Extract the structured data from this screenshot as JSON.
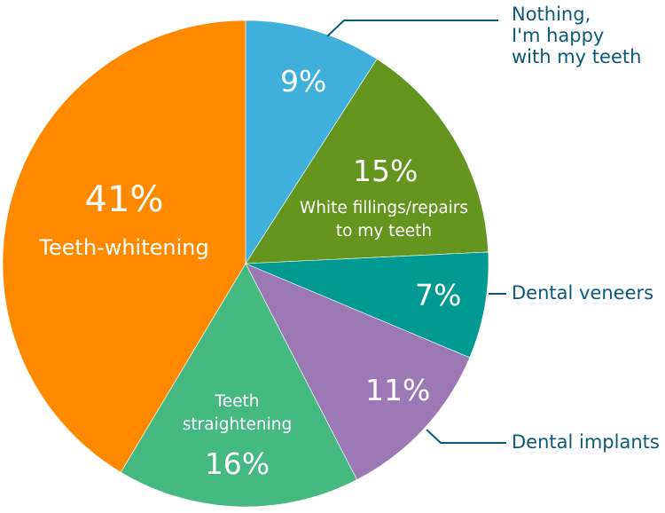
{
  "chart_data": {
    "type": "pie",
    "title": "",
    "start_angle": "12 o'clock",
    "direction": "clockwise",
    "slices": [
      {
        "label": "Nothing, I'm happy with my teeth",
        "value": 9,
        "display": "9%",
        "color": "#3fb0dc",
        "label_position": "outside"
      },
      {
        "label": "White fillings/repairs to my teeth",
        "value": 15,
        "display": "15%",
        "color": "#64951f",
        "label_position": "inside"
      },
      {
        "label": "Dental veneers",
        "value": 7,
        "display": "7%",
        "color": "#009a93",
        "label_position": "outside"
      },
      {
        "label": "Dental implants",
        "value": 11,
        "display": "11%",
        "color": "#9c79b5",
        "label_position": "outside"
      },
      {
        "label": "Teeth straightening",
        "value": 16,
        "display": "16%",
        "color": "#46b882",
        "label_position": "inside"
      },
      {
        "label": "Teeth-whitening",
        "value": 41,
        "display": "41%",
        "color": "#ff8a00",
        "label_position": "inside"
      }
    ],
    "label_color_outside": "#0b5a7a",
    "leader_line_color": "#0b5a7a"
  },
  "labels": {
    "nothing_pct": "9%",
    "nothing_line1": "Nothing,",
    "nothing_line2": "I'm happy",
    "nothing_line3": "with my teeth",
    "fillings_pct": "15%",
    "fillings_line1": "White fillings/repairs",
    "fillings_line2": "to my teeth",
    "veneers_pct": "7%",
    "veneers_name": "Dental veneers",
    "implants_pct": "11%",
    "implants_name": "Dental implants",
    "straight_line1": "Teeth",
    "straight_line2": "straightening",
    "straight_pct": "16%",
    "whitening_pct": "41%",
    "whitening_name": "Teeth-whitening"
  }
}
